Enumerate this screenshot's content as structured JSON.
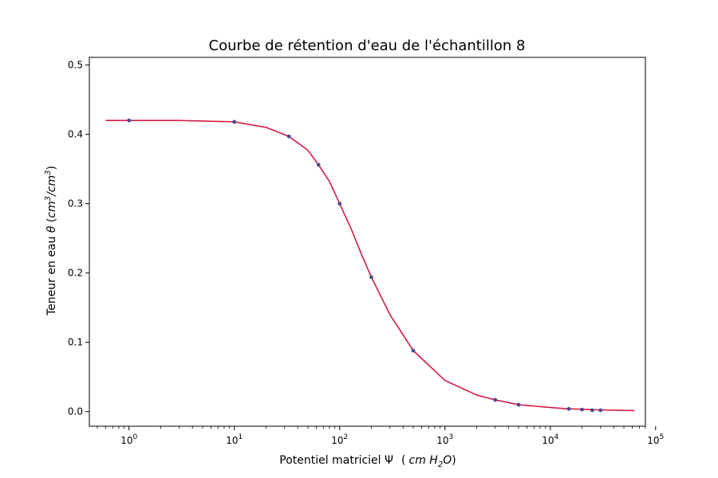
{
  "chart_data": {
    "type": "scatter",
    "title": "Courbe de rétention d'eau de l'échantillon 8",
    "xlabel": {
      "text": "Potentiel matriciel Ψ",
      "unit_open": "(",
      "unit_var": "cm H",
      "unit_sub": "2",
      "unit_end": "O",
      "unit_close": ")"
    },
    "ylabel": {
      "text": "Teneur en eau ",
      "sym": "θ",
      "open": " (",
      "num": "cm",
      "num_sup": "3",
      "slash": "/",
      "den": "cm",
      "den_sup": "3",
      "close": ")"
    },
    "x_scale": "log",
    "xlim": [
      0.42,
      80000
    ],
    "ylim": [
      -0.021,
      0.511
    ],
    "grid": false,
    "x_ticks": [
      {
        "base": "10",
        "exp": "0",
        "value": 1
      },
      {
        "base": "10",
        "exp": "1",
        "value": 10
      },
      {
        "base": "10",
        "exp": "2",
        "value": 100
      },
      {
        "base": "10",
        "exp": "3",
        "value": 1000
      },
      {
        "base": "10",
        "exp": "4",
        "value": 10000
      },
      {
        "base": "10",
        "exp": "5",
        "value": 100000
      }
    ],
    "y_ticks": [
      "0.0",
      "0.1",
      "0.2",
      "0.3",
      "0.4",
      "0.5"
    ],
    "series": [
      {
        "kind": "points",
        "color": "#4a4a8c",
        "x": [
          1,
          10,
          33,
          63,
          100,
          200,
          500,
          3000,
          5000,
          15000,
          20000,
          25000,
          30000
        ],
        "y": [
          0.42,
          0.418,
          0.397,
          0.356,
          0.3,
          0.194,
          0.088,
          0.017,
          0.01,
          0.004,
          0.003,
          0.002,
          0.002
        ]
      },
      {
        "kind": "line",
        "color": "#d61a46",
        "x": [
          0.6,
          1,
          3,
          10,
          20,
          33,
          50,
          63,
          80,
          100,
          130,
          160,
          200,
          300,
          500,
          1000,
          2000,
          3000,
          5000,
          10000,
          15000,
          20000,
          30000,
          63000
        ],
        "y": [
          0.42,
          0.42,
          0.42,
          0.418,
          0.41,
          0.397,
          0.377,
          0.356,
          0.332,
          0.3,
          0.262,
          0.228,
          0.194,
          0.14,
          0.088,
          0.045,
          0.024,
          0.017,
          0.01,
          0.006,
          0.004,
          0.0035,
          0.0025,
          0.0015
        ]
      }
    ]
  }
}
